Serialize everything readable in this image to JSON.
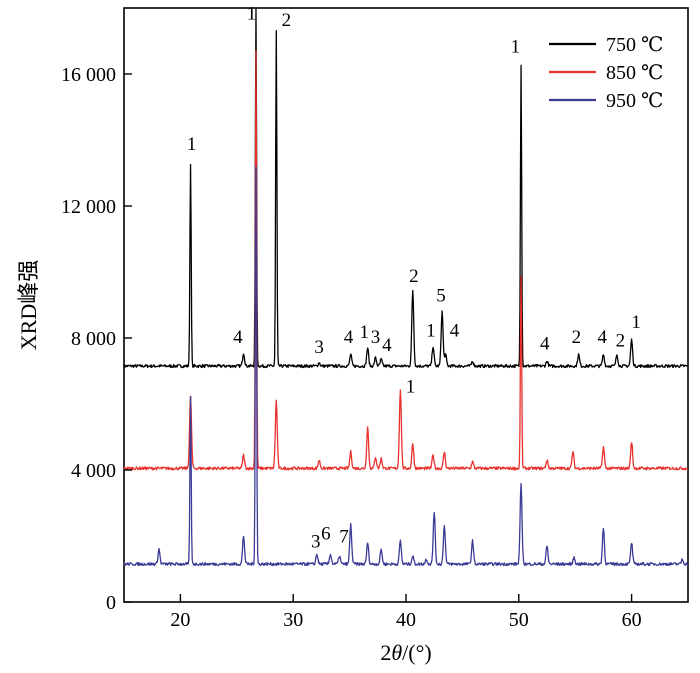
{
  "chart_data": {
    "type": "line",
    "xlabel": "2θ/(°)",
    "xlabel_parts": {
      "prefix": "2",
      "symbol": "θ",
      "suffix": "/(°)"
    },
    "ylabel": "XRD峰强",
    "xlim": [
      15,
      65
    ],
    "ylim": [
      0,
      18000
    ],
    "x_ticks": [
      20,
      30,
      40,
      50,
      60
    ],
    "x_tick_labels": [
      "20",
      "30",
      "40",
      "50",
      "60"
    ],
    "y_ticks": [
      0,
      4000,
      8000,
      12000,
      16000
    ],
    "y_tick_labels": [
      "0",
      "4 000",
      "8 000",
      "12 000",
      "16 000"
    ],
    "grid": false,
    "legend_position": "top-right",
    "series": [
      {
        "name": "750 ℃",
        "color": "#000000",
        "baseline": 7150,
        "peaks": [
          [
            20.9,
            13300
          ],
          [
            25.6,
            7550
          ],
          [
            26.7,
            18000
          ],
          [
            28.5,
            17300
          ],
          [
            32.3,
            7250
          ],
          [
            35.1,
            7500
          ],
          [
            36.6,
            7700
          ],
          [
            37.3,
            7400
          ],
          [
            37.8,
            7350
          ],
          [
            40.6,
            9450
          ],
          [
            42.4,
            7750
          ],
          [
            43.2,
            8800
          ],
          [
            43.5,
            7500
          ],
          [
            45.9,
            7300
          ],
          [
            50.2,
            16300
          ],
          [
            52.5,
            7300
          ],
          [
            55.3,
            7500
          ],
          [
            57.5,
            7500
          ],
          [
            58.7,
            7500
          ],
          [
            60.0,
            7950
          ]
        ]
      },
      {
        "name": "850 ℃",
        "color": "#e8322d",
        "baseline": 4050,
        "peaks": [
          [
            20.9,
            6200
          ],
          [
            25.6,
            4450
          ],
          [
            26.7,
            16700
          ],
          [
            28.5,
            6100
          ],
          [
            32.3,
            4300
          ],
          [
            35.1,
            4550
          ],
          [
            36.6,
            5300
          ],
          [
            37.3,
            4400
          ],
          [
            37.8,
            4350
          ],
          [
            39.5,
            6450
          ],
          [
            40.6,
            4800
          ],
          [
            42.4,
            4450
          ],
          [
            43.4,
            4550
          ],
          [
            45.9,
            4250
          ],
          [
            50.2,
            9900
          ],
          [
            52.5,
            4300
          ],
          [
            54.8,
            4550
          ],
          [
            57.5,
            4700
          ],
          [
            60.0,
            4850
          ]
        ]
      },
      {
        "name": "950 ℃",
        "color": "#3b3b96",
        "baseline": 1150,
        "peaks": [
          [
            18.1,
            1600
          ],
          [
            20.9,
            6200
          ],
          [
            25.6,
            2000
          ],
          [
            26.7,
            13200
          ],
          [
            32.1,
            1450
          ],
          [
            33.3,
            1450
          ],
          [
            34.1,
            1400
          ],
          [
            35.1,
            2350
          ],
          [
            36.6,
            1800
          ],
          [
            37.8,
            1600
          ],
          [
            39.5,
            1850
          ],
          [
            40.6,
            1400
          ],
          [
            41.8,
            1300
          ],
          [
            42.5,
            2750
          ],
          [
            43.4,
            2350
          ],
          [
            45.9,
            1850
          ],
          [
            50.2,
            3550
          ],
          [
            52.5,
            1700
          ],
          [
            54.9,
            1350
          ],
          [
            57.5,
            2250
          ],
          [
            60.0,
            1800
          ],
          [
            64.5,
            1300
          ]
        ]
      }
    ],
    "annotations": [
      {
        "text": "1",
        "x": 21.0,
        "y": 13700,
        "series": "750 ℃"
      },
      {
        "text": "1",
        "x": 26.3,
        "y": 17650,
        "series": "750 ℃"
      },
      {
        "text": "2",
        "x": 29.4,
        "y": 17450,
        "series": "750 ℃"
      },
      {
        "text": "4",
        "x": 25.1,
        "y": 7850,
        "series": "750 ℃"
      },
      {
        "text": "3",
        "x": 32.3,
        "y": 7550,
        "series": "750 ℃"
      },
      {
        "text": "4",
        "x": 34.9,
        "y": 7850,
        "series": "750 ℃"
      },
      {
        "text": "1",
        "x": 36.3,
        "y": 8000,
        "series": "750 ℃"
      },
      {
        "text": "3",
        "x": 37.3,
        "y": 7850,
        "series": "750 ℃"
      },
      {
        "text": "4",
        "x": 38.3,
        "y": 7600,
        "series": "750 ℃"
      },
      {
        "text": "2",
        "x": 40.7,
        "y": 9700,
        "series": "750 ℃"
      },
      {
        "text": "1",
        "x": 42.2,
        "y": 8050,
        "series": "750 ℃"
      },
      {
        "text": "5",
        "x": 43.1,
        "y": 9100,
        "series": "750 ℃"
      },
      {
        "text": "4",
        "x": 44.3,
        "y": 8050,
        "series": "750 ℃"
      },
      {
        "text": "1",
        "x": 49.7,
        "y": 16650,
        "series": "750 ℃"
      },
      {
        "text": "4",
        "x": 52.3,
        "y": 7650,
        "series": "750 ℃"
      },
      {
        "text": "2",
        "x": 55.1,
        "y": 7850,
        "series": "750 ℃"
      },
      {
        "text": "4",
        "x": 57.4,
        "y": 7850,
        "series": "750 ℃"
      },
      {
        "text": "2",
        "x": 59.0,
        "y": 7750,
        "series": "750 ℃"
      },
      {
        "text": "1",
        "x": 60.4,
        "y": 8300,
        "series": "750 ℃"
      },
      {
        "text": "1",
        "x": 40.4,
        "y": 6350,
        "series": "850 ℃"
      },
      {
        "text": "3",
        "x": 32.0,
        "y": 1650,
        "series": "950 ℃"
      },
      {
        "text": "6",
        "x": 32.9,
        "y": 1900,
        "series": "950 ℃"
      },
      {
        "text": "7",
        "x": 34.5,
        "y": 1800,
        "series": "950 ℃"
      }
    ]
  }
}
